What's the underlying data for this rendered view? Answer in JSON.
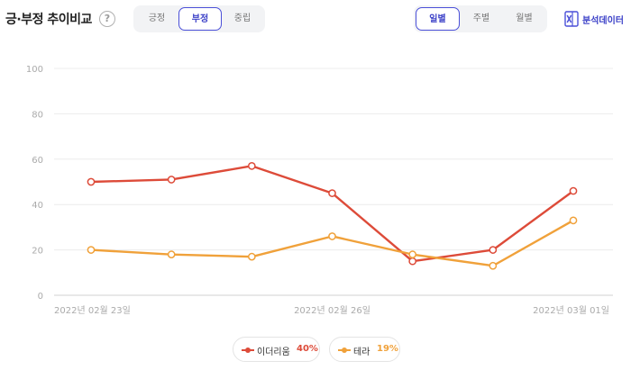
{
  "header": {
    "title": "긍·부정 추이비교",
    "help_symbol": "?",
    "sentiment_tabs": [
      {
        "label": "긍정",
        "active": false
      },
      {
        "label": "부정",
        "active": true
      },
      {
        "label": "중립",
        "active": false
      }
    ],
    "period_tabs": [
      {
        "label": "일별",
        "active": true
      },
      {
        "label": "주별",
        "active": false
      },
      {
        "label": "월별",
        "active": false
      }
    ],
    "analysis_label": "분석데이터",
    "analysis_icon": "excel-icon"
  },
  "legend": [
    {
      "name": "이더리움",
      "percent": "40%",
      "color": "#dd4b39"
    },
    {
      "name": "테라",
      "percent": "19%",
      "color": "#f0a13a"
    }
  ],
  "chart_data": {
    "type": "line",
    "x": [
      "2022-02-23",
      "2022-02-24",
      "2022-02-25",
      "2022-02-26",
      "2022-02-27",
      "2022-02-28",
      "2022-03-01"
    ],
    "x_tick_labels": [
      {
        "index": 0,
        "label": "2022년 02월 23일"
      },
      {
        "index": 3,
        "label": "2022년 02월 26일"
      },
      {
        "index": 6,
        "label": "2022년 03월 01일"
      }
    ],
    "ylim": [
      0,
      100
    ],
    "yticks": [
      0,
      20,
      40,
      60,
      80,
      100
    ],
    "grid": true,
    "legend_position": "bottom-center",
    "series": [
      {
        "name": "이더리움",
        "color": "#dd4b39",
        "values": [
          50,
          51,
          57,
          45,
          15,
          20,
          46
        ]
      },
      {
        "name": "테라",
        "color": "#f0a13a",
        "values": [
          20,
          18,
          17,
          26,
          18,
          13,
          33
        ]
      }
    ]
  }
}
